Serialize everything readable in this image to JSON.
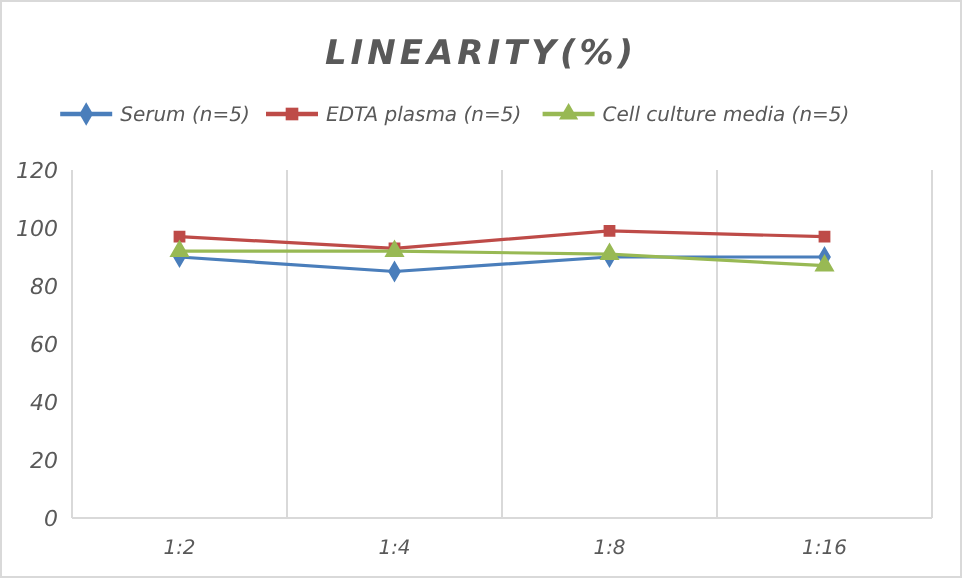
{
  "chart_data": {
    "type": "line",
    "title": "LINEARITY(%)",
    "categories": [
      "1:2",
      "1:4",
      "1:8",
      "1:16"
    ],
    "series": [
      {
        "name": "Serum (n=5)",
        "color": "#4a7ebb",
        "marker": "diamond",
        "values": [
          90,
          85,
          90,
          90
        ]
      },
      {
        "name": "EDTA plasma (n=5)",
        "color": "#be4b48",
        "marker": "square",
        "values": [
          97,
          93,
          99,
          97
        ]
      },
      {
        "name": "Cell culture media (n=5)",
        "color": "#98b954",
        "marker": "triangle",
        "values": [
          92,
          92,
          91,
          87
        ]
      }
    ],
    "ylim": [
      0,
      120
    ],
    "yticks": [
      0,
      20,
      40,
      60,
      80,
      100,
      120
    ],
    "grid": "x",
    "legend": "top"
  }
}
